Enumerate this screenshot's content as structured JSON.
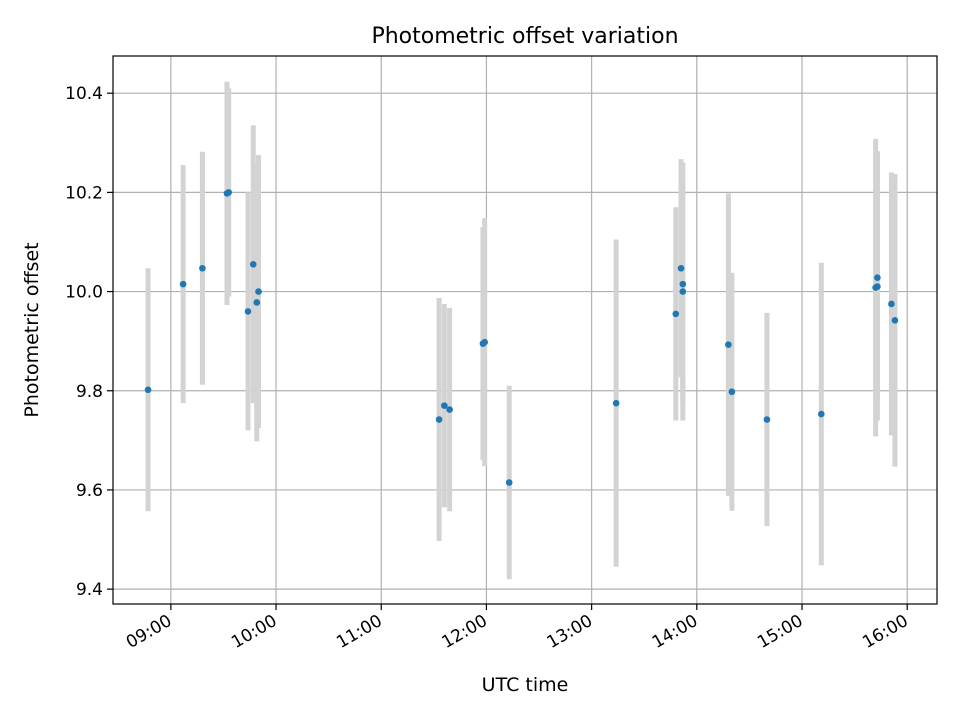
{
  "chart_data": {
    "type": "scatter",
    "title": "Photometric offset variation",
    "xlabel": "UTC time",
    "ylabel": "Photometric offset",
    "x_tick_labels": [
      "09:00",
      "10:00",
      "11:00",
      "12:00",
      "13:00",
      "14:00",
      "15:00",
      "16:00"
    ],
    "y_tick_labels": [
      "9.4",
      "9.6",
      "9.8",
      "10.0",
      "10.2",
      "10.4"
    ],
    "y_ticks": [
      9.4,
      9.6,
      9.8,
      10.0,
      10.2,
      10.4
    ],
    "xlim": [
      "08:27",
      "16:17"
    ],
    "ylim": [
      9.37,
      10.475
    ],
    "grid": true,
    "marker_color": "#1f77b4",
    "errorbar_color": "#d3d3d3",
    "points": [
      {
        "x": "08:47",
        "y": 9.802,
        "err": 0.245
      },
      {
        "x": "09:07",
        "y": 10.015,
        "err": 0.24
      },
      {
        "x": "09:18",
        "y": 10.047,
        "err": 0.235
      },
      {
        "x": "09:32",
        "y": 10.198,
        "err": 0.225
      },
      {
        "x": "09:33",
        "y": 10.2,
        "err": 0.21
      },
      {
        "x": "09:44",
        "y": 9.96,
        "err": 0.24
      },
      {
        "x": "09:47",
        "y": 10.055,
        "err": 0.28
      },
      {
        "x": "09:49",
        "y": 9.978,
        "err": 0.28
      },
      {
        "x": "09:50",
        "y": 10.0,
        "err": 0.275
      },
      {
        "x": "11:33",
        "y": 9.742,
        "err": 0.245
      },
      {
        "x": "11:36",
        "y": 9.77,
        "err": 0.205
      },
      {
        "x": "11:39",
        "y": 9.762,
        "err": 0.205
      },
      {
        "x": "11:58",
        "y": 9.895,
        "err": 0.235
      },
      {
        "x": "11:59",
        "y": 9.898,
        "err": 0.25
      },
      {
        "x": "12:13",
        "y": 9.615,
        "err": 0.195
      },
      {
        "x": "13:14",
        "y": 9.775,
        "err": 0.33
      },
      {
        "x": "13:48",
        "y": 9.955,
        "err": 0.215
      },
      {
        "x": "13:51",
        "y": 10.047,
        "err": 0.22
      },
      {
        "x": "13:52",
        "y": 10.015,
        "err": 0.245
      },
      {
        "x": "13:52",
        "y": 10.0,
        "err": 0.26
      },
      {
        "x": "14:18",
        "y": 9.893,
        "err": 0.305
      },
      {
        "x": "14:20",
        "y": 9.798,
        "err": 0.24
      },
      {
        "x": "14:40",
        "y": 9.742,
        "err": 0.215
      },
      {
        "x": "15:11",
        "y": 9.753,
        "err": 0.305
      },
      {
        "x": "15:42",
        "y": 10.008,
        "err": 0.3
      },
      {
        "x": "15:43",
        "y": 10.01,
        "err": 0.27
      },
      {
        "x": "15:43",
        "y": 10.028,
        "err": 0.255
      },
      {
        "x": "15:51",
        "y": 9.975,
        "err": 0.265
      },
      {
        "x": "15:53",
        "y": 9.942,
        "err": 0.295
      }
    ]
  }
}
